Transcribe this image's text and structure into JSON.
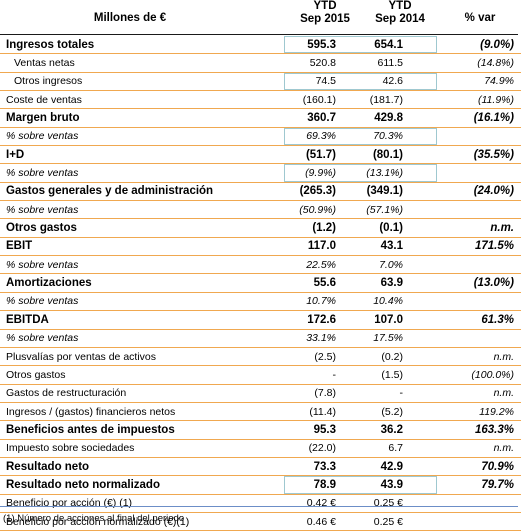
{
  "header": {
    "title": "Millones de €",
    "col1": "YTD\nSep 2015",
    "col2": "YTD\nSep 2014",
    "col3": "% var"
  },
  "rows": [
    {
      "label": "Ingresos totales",
      "v1": "595.3",
      "v2": "654.1",
      "v3": "(9.0%)",
      "bold": true,
      "box": true
    },
    {
      "label": "Ventas netas",
      "v1": "520.8",
      "v2": "611.5",
      "v3": "(14.8%)",
      "indent": true
    },
    {
      "label": "Otros ingresos",
      "v1": "74.5",
      "v2": "42.6",
      "v3": "74.9%",
      "indent": true,
      "box": true
    },
    {
      "label": "Coste de ventas",
      "v1": "(160.1)",
      "v2": "(181.7)",
      "v3": "(11.9%)"
    },
    {
      "label": "Margen bruto",
      "v1": "360.7",
      "v2": "429.8",
      "v3": "(16.1%)",
      "bold": true
    },
    {
      "label": "% sobre ventas",
      "v1": "69.3%",
      "v2": "70.3%",
      "v3": "",
      "pct": true,
      "box": true
    },
    {
      "label": "I+D",
      "v1": "(51.7)",
      "v2": "(80.1)",
      "v3": "(35.5%)",
      "bold": true
    },
    {
      "label": "% sobre ventas",
      "v1": "(9.9%)",
      "v2": "(13.1%)",
      "v3": "",
      "pct": true,
      "box": true
    },
    {
      "label": "Gastos generales y de administración",
      "v1": "(265.3)",
      "v2": "(349.1)",
      "v3": "(24.0%)",
      "bold": true
    },
    {
      "label": "% sobre ventas",
      "v1": "(50.9%)",
      "v2": "(57.1%)",
      "v3": "",
      "pct": true
    },
    {
      "label": "Otros gastos",
      "v1": "(1.2)",
      "v2": "(0.1)",
      "v3": "n.m.",
      "bold": true
    },
    {
      "label": "EBIT",
      "v1": "117.0",
      "v2": "43.1",
      "v3": "171.5%",
      "bold": true
    },
    {
      "label": "% sobre ventas",
      "v1": "22.5%",
      "v2": "7.0%",
      "v3": "",
      "pct": true
    },
    {
      "label": "Amortizaciones",
      "v1": "55.6",
      "v2": "63.9",
      "v3": "(13.0%)",
      "bold": true
    },
    {
      "label": "% sobre ventas",
      "v1": "10.7%",
      "v2": "10.4%",
      "v3": "",
      "pct": true
    },
    {
      "label": "EBITDA",
      "v1": "172.6",
      "v2": "107.0",
      "v3": "61.3%",
      "bold": true
    },
    {
      "label": "% sobre ventas",
      "v1": "33.1%",
      "v2": "17.5%",
      "v3": "",
      "pct": true
    },
    {
      "label": "Plusvalías por ventas de activos",
      "v1": "(2.5)",
      "v2": "(0.2)",
      "v3": "n.m."
    },
    {
      "label": "Otros gastos",
      "v1": "-",
      "v2": "(1.5)",
      "v3": "(100.0%)"
    },
    {
      "label": "Gastos de restructuración",
      "v1": "(7.8)",
      "v2": "-",
      "v3": "n.m."
    },
    {
      "label": "Ingresos / (gastos) financieros netos",
      "v1": "(11.4)",
      "v2": "(5.2)",
      "v3": "119.2%"
    },
    {
      "label": "Beneficios antes de impuestos",
      "v1": "95.3",
      "v2": "36.2",
      "v3": "163.3%",
      "bold": true
    },
    {
      "label": "Impuesto sobre sociedades",
      "v1": "(22.0)",
      "v2": "6.7",
      "v3": "n.m."
    },
    {
      "label": "Resultado neto",
      "v1": "73.3",
      "v2": "42.9",
      "v3": "70.9%",
      "bold": true
    },
    {
      "label": "Resultado neto normalizado",
      "v1": "78.9",
      "v2": "43.9",
      "v3": "79.7%",
      "bold": true,
      "box": true
    },
    {
      "label": "Beneficio por acción  (€) (1)",
      "v1": "0.42 €",
      "v2": "0.25 €",
      "v3": ""
    },
    {
      "label": "Beneficio por acción normalizado (€)(1)",
      "v1": "0.46 €",
      "v2": "0.25 €",
      "v3": ""
    }
  ],
  "footnote": "(1) Número de acciones al final del periodo"
}
